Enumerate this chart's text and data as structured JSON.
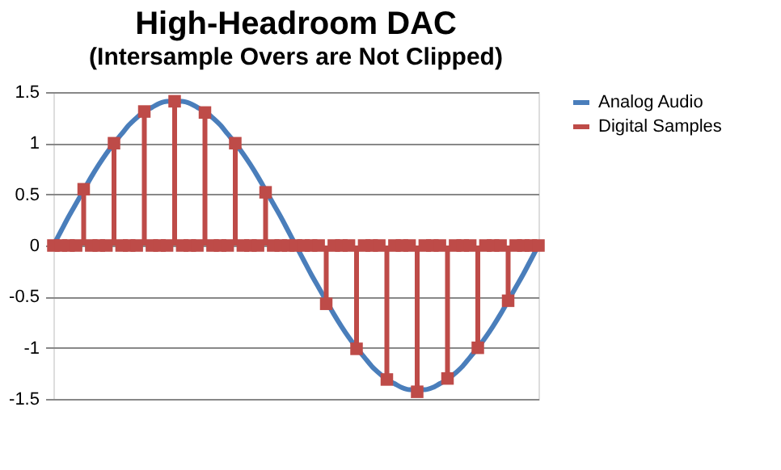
{
  "chart_data": {
    "type": "line",
    "title": "High-Headroom DAC",
    "subtitle": "(Intersample Overs are Not Clipped)",
    "categories": [
      null,
      null,
      null,
      null,
      null,
      null,
      null,
      null,
      null,
      null,
      null,
      null,
      null,
      null,
      null,
      null,
      null,
      null,
      null,
      null,
      null,
      null,
      null,
      null,
      null,
      null,
      null,
      null,
      null,
      null,
      null,
      null,
      null,
      null,
      null,
      null,
      null,
      null,
      null,
      null,
      null,
      null,
      null,
      null,
      null,
      null,
      null,
      null,
      null,
      null,
      null,
      null,
      null,
      null,
      null,
      null,
      null,
      null,
      null,
      null,
      null,
      null,
      null,
      null,
      null
    ],
    "ylim": [
      -1.5,
      1.5
    ],
    "yticks": [
      -1.5,
      -1,
      -0.5,
      0,
      0.5,
      1,
      1.5
    ],
    "grid": "y",
    "tick_labels": "y",
    "legend": "right",
    "series": [
      {
        "name": "Analog Audio",
        "color": "#4a7ebb",
        "values": [
          0,
          0.14,
          0.28,
          0.41,
          0.54,
          0.67,
          0.79,
          0.9,
          1.0,
          1.09,
          1.18,
          1.25,
          1.31,
          1.35,
          1.39,
          1.41,
          1.41,
          1.41,
          1.39,
          1.35,
          1.31,
          1.25,
          1.18,
          1.09,
          1.0,
          0.9,
          0.79,
          0.67,
          0.54,
          0.41,
          0.28,
          0.14,
          0,
          -0.14,
          -0.28,
          -0.41,
          -0.54,
          -0.67,
          -0.79,
          -0.9,
          -1.0,
          -1.09,
          -1.18,
          -1.25,
          -1.31,
          -1.35,
          -1.39,
          -1.41,
          -1.41,
          -1.41,
          -1.39,
          -1.35,
          -1.31,
          -1.25,
          -1.18,
          -1.09,
          -1.0,
          -0.9,
          -0.79,
          -0.67,
          -0.54,
          -0.41,
          -0.28,
          -0.14,
          0
        ]
      },
      {
        "name": "Digital Samples",
        "color": "#be4b48",
        "type": "lollipop",
        "marker": "square",
        "values": [
          0,
          0,
          0,
          0,
          0.55,
          0,
          0,
          0,
          1.0,
          0,
          0,
          0,
          1.31,
          0,
          0,
          0,
          1.41,
          0,
          0,
          0,
          1.3,
          0,
          0,
          0,
          1.0,
          0,
          0,
          0,
          0.52,
          0,
          0,
          0,
          0,
          0,
          0,
          0,
          -0.57,
          0,
          0,
          0,
          -1.01,
          0,
          0,
          0,
          -1.31,
          0,
          0,
          0,
          -1.43,
          0,
          0,
          0,
          -1.3,
          0,
          0,
          0,
          -1.0,
          0,
          0,
          0,
          -0.54,
          0,
          0,
          0,
          0
        ]
      }
    ]
  }
}
